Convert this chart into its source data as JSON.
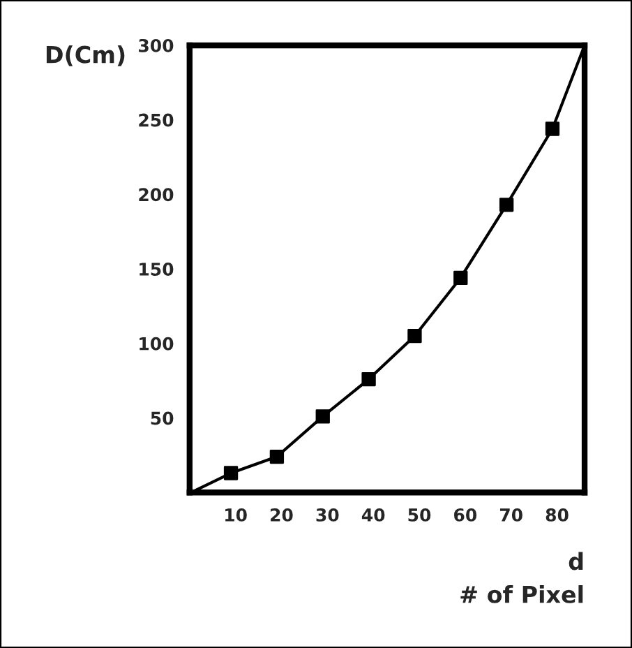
{
  "chart_data": {
    "type": "line",
    "xlabel": "d\n# of Pixel",
    "ylabel": "D(Cm)",
    "xlim": [
      0,
      86
    ],
    "ylim": [
      0,
      300
    ],
    "xticks": [
      10,
      20,
      30,
      40,
      50,
      60,
      70,
      80
    ],
    "yticks": [
      50,
      100,
      150,
      200,
      250,
      300
    ],
    "grid": false,
    "legend": false,
    "series": [
      {
        "color": "#000000",
        "marker": "none",
        "x": [
          1,
          9,
          19,
          29,
          39,
          49,
          59,
          69,
          79,
          86
        ],
        "values": [
          1,
          13,
          24,
          51,
          76,
          105,
          144,
          193,
          244,
          300
        ]
      },
      {
        "type": "scatter",
        "color": "#000000",
        "marker": "square",
        "x": [
          9,
          19,
          29,
          39,
          49,
          59,
          69,
          79
        ],
        "values": [
          13,
          24,
          51,
          76,
          105,
          144,
          193,
          244
        ]
      }
    ]
  }
}
